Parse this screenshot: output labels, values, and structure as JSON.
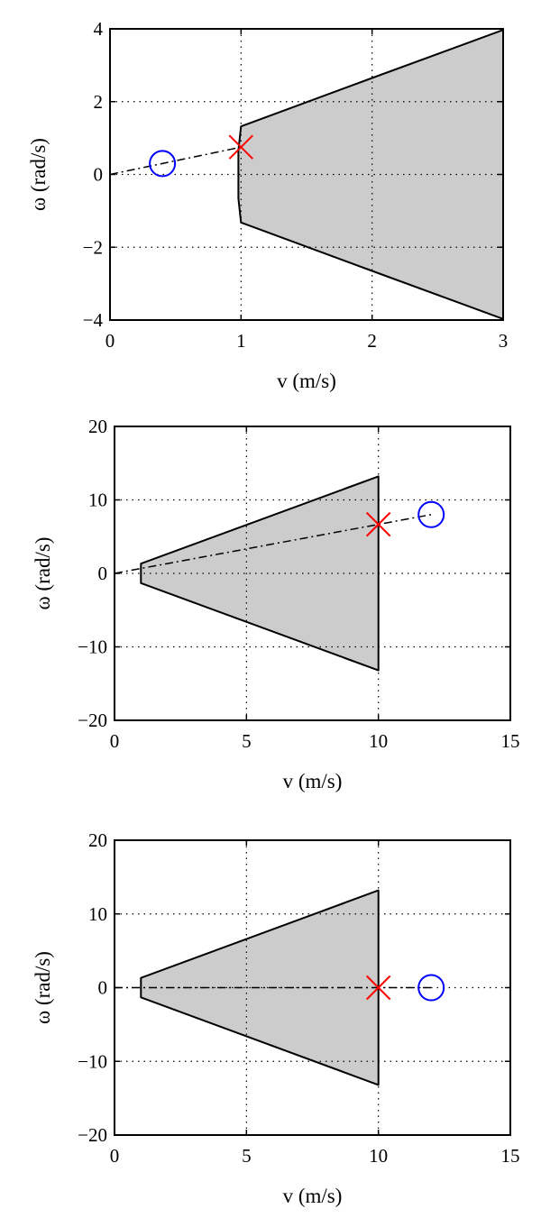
{
  "chart_data": [
    {
      "type": "line",
      "xlabel": "v (m/s)",
      "ylabel": "ω (rad/s)",
      "xlim": [
        0,
        3
      ],
      "ylim": [
        -4,
        4
      ],
      "xticks": [
        0,
        1,
        2,
        3
      ],
      "yticks": [
        -4,
        -2,
        0,
        2,
        4
      ],
      "grid": "dotted",
      "feasible_region": {
        "fill": "#cccccc",
        "outline": [
          [
            1,
            1.32
          ],
          [
            2,
            2.65
          ],
          [
            3,
            3.97
          ],
          [
            3,
            -3.97
          ],
          [
            2,
            -2.65
          ],
          [
            1,
            -1.32
          ],
          [
            0.98,
            -0.66
          ],
          [
            0.98,
            0
          ],
          [
            0.98,
            0.66
          ]
        ]
      },
      "series": [
        {
          "marker": "dashdot-line",
          "color": "#000000",
          "x": [
            0,
            1
          ],
          "y": [
            0,
            0.75
          ]
        },
        {
          "marker": "circle",
          "color": "#0000ff",
          "x": [
            0.4
          ],
          "y": [
            0.3
          ]
        },
        {
          "marker": "x",
          "color": "#ff0000",
          "x": [
            1.0
          ],
          "y": [
            0.75
          ]
        }
      ]
    },
    {
      "type": "line",
      "xlabel": "v (m/s)",
      "ylabel": "ω (rad/s)",
      "xlim": [
        0,
        15
      ],
      "ylim": [
        -20,
        20
      ],
      "xticks": [
        0,
        5,
        10,
        15
      ],
      "yticks": [
        -20,
        -10,
        0,
        10,
        20
      ],
      "grid": "dotted",
      "feasible_region": {
        "fill": "#cccccc",
        "outline": [
          [
            1,
            1.32
          ],
          [
            10,
            13.2
          ],
          [
            10,
            -13.2
          ],
          [
            1,
            -1.32
          ]
        ]
      },
      "series": [
        {
          "marker": "dashdot-line",
          "color": "#000000",
          "x": [
            0,
            12
          ],
          "y": [
            0,
            8
          ]
        },
        {
          "marker": "circle",
          "color": "#0000ff",
          "x": [
            12
          ],
          "y": [
            8
          ]
        },
        {
          "marker": "x",
          "color": "#ff0000",
          "x": [
            10
          ],
          "y": [
            6.67
          ]
        }
      ]
    },
    {
      "type": "line",
      "xlabel": "v (m/s)",
      "ylabel": "ω (rad/s)",
      "xlim": [
        0,
        15
      ],
      "ylim": [
        -20,
        20
      ],
      "xticks": [
        0,
        5,
        10,
        15
      ],
      "yticks": [
        -20,
        -10,
        0,
        10,
        20
      ],
      "grid": "dotted",
      "feasible_region": {
        "fill": "#cccccc",
        "outline": [
          [
            1,
            1.32
          ],
          [
            10,
            13.2
          ],
          [
            10,
            -13.2
          ],
          [
            1,
            -1.32
          ]
        ]
      },
      "series": [
        {
          "marker": "dashdot-line",
          "color": "#000000",
          "x": [
            0,
            12
          ],
          "y": [
            0,
            0
          ]
        },
        {
          "marker": "circle",
          "color": "#0000ff",
          "x": [
            12
          ],
          "y": [
            0
          ]
        },
        {
          "marker": "x",
          "color": "#ff0000",
          "x": [
            10
          ],
          "y": [
            0
          ]
        }
      ]
    }
  ]
}
